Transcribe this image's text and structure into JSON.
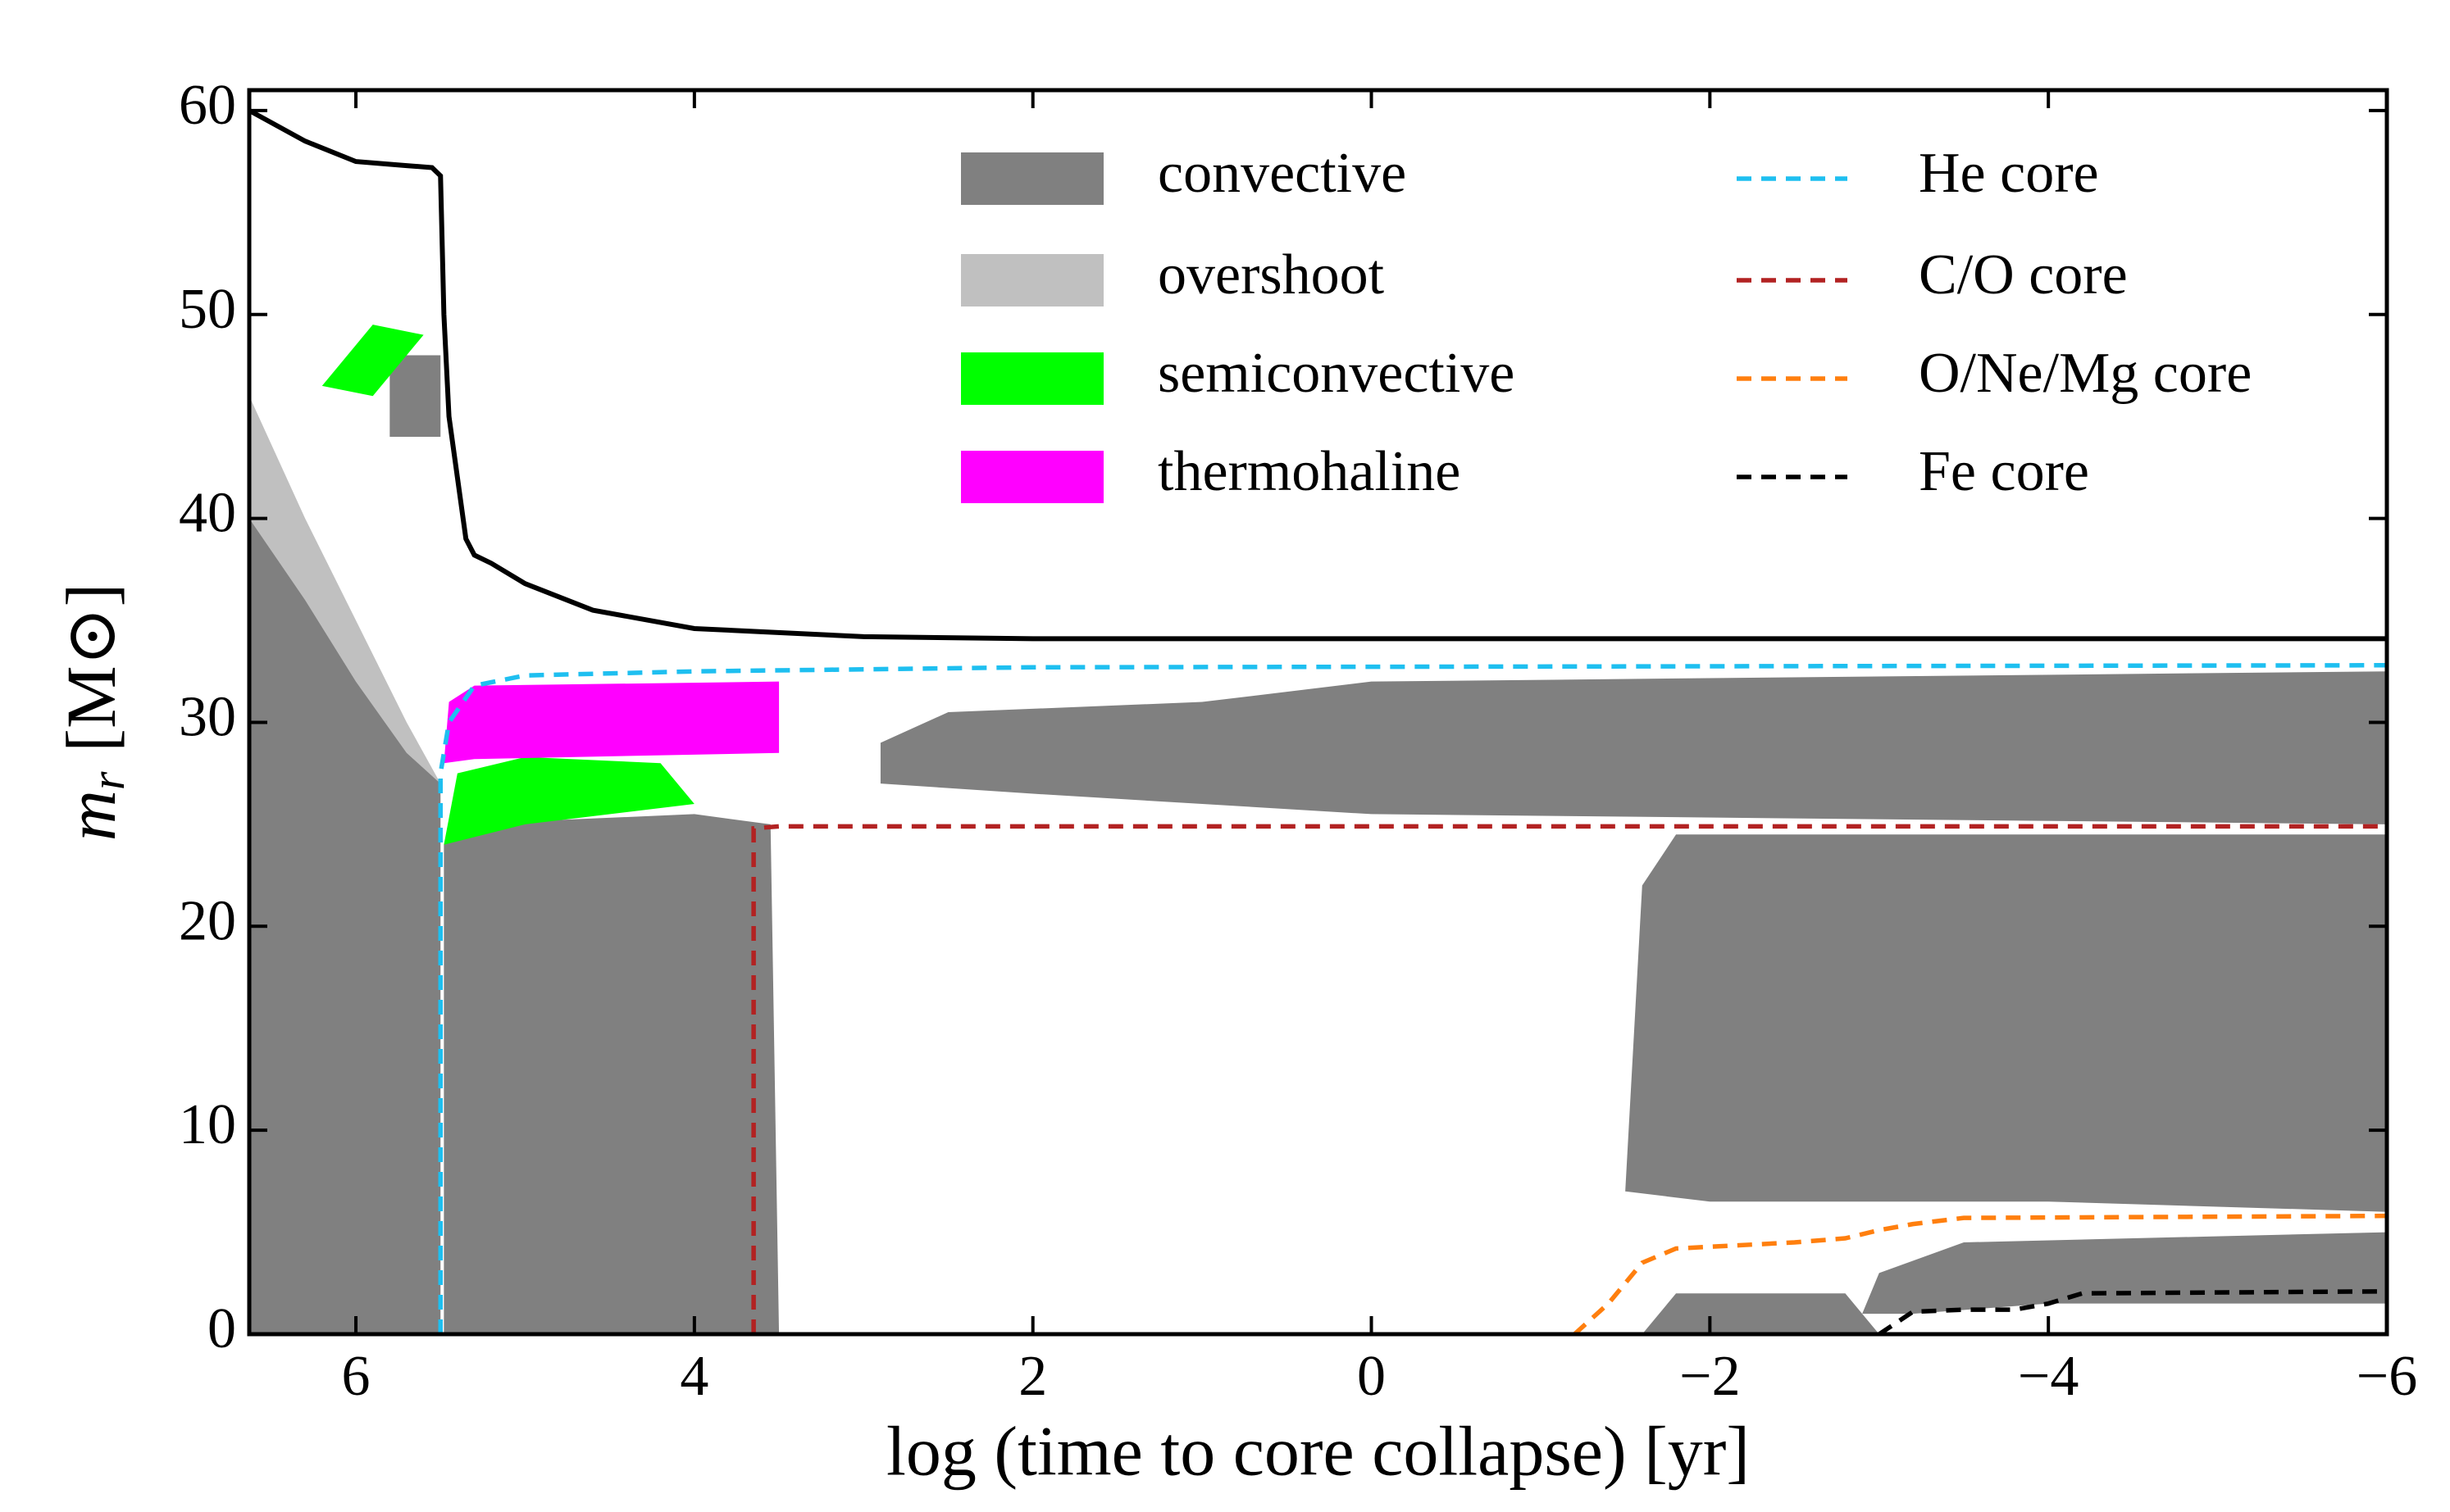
{
  "chart_data": {
    "type": "kippenhahn",
    "xlabel": "log (time to core collapse) [yr]",
    "ylabel": {
      "symbol": "m",
      "subscript": "r",
      "unit": "[M⊙]"
    },
    "xlim": [
      6.63,
      -6
    ],
    "ylim": [
      0,
      61
    ],
    "xticks": [
      6,
      4,
      2,
      0,
      {
        "value": -2,
        "label": "−2"
      },
      {
        "value": -4,
        "label": "−4"
      },
      {
        "value": -6,
        "label": "−6"
      }
    ],
    "yticks": [
      0,
      10,
      20,
      30,
      40,
      50,
      60
    ],
    "regions": [
      {
        "name": "convective",
        "color": "#808080",
        "polygons": [
          {
            "x": [
              6.63,
              6.63,
              6.3,
              6.0,
              5.7,
              5.5,
              5.5
            ],
            "y": [
              0,
              40,
              36,
              32,
              28.5,
              27,
              0
            ]
          },
          {
            "x": [
              5.48,
              5.48,
              5.4,
              4.0,
              3.55,
              3.5
            ],
            "y": [
              0,
              24,
              25,
              25.5,
              25,
              0
            ]
          },
          {
            "x": [
              2.9,
              2.5,
              1.0,
              0.0,
              -6.0,
              -6.0,
              0.0,
              2.0,
              2.9
            ],
            "y": [
              29,
              30.5,
              31,
              32,
              32.5,
              25,
              25.5,
              26.5,
              27
            ]
          },
          {
            "x": [
              -1.5,
              -1.6,
              -1.8,
              -6.0,
              -6.0,
              -4.0,
              -2.0
            ],
            "y": [
              7,
              22,
              24.5,
              24.5,
              6,
              6.5,
              6.5
            ]
          },
          {
            "x": [
              -1.6,
              -1.8,
              -2.8,
              -3.0
            ],
            "y": [
              0,
              2,
              2,
              0
            ]
          },
          {
            "x": [
              -2.9,
              -3.0,
              -3.5,
              -6.0,
              -6.0,
              -4.0,
              -3.2
            ],
            "y": [
              1,
              3,
              4.5,
              5,
              1.5,
              1.5,
              1
            ]
          },
          {
            "x": [
              5.8,
              5.5,
              5.5,
              5.8
            ],
            "y": [
              44,
              44,
              48,
              48
            ]
          }
        ]
      },
      {
        "name": "overshoot",
        "color": "#c0c0c0",
        "polygons": [
          {
            "x": [
              6.63,
              6.3,
              6.0,
              5.7,
              5.5,
              5.7,
              6.0,
              6.3,
              6.63
            ],
            "y": [
              46,
              40,
              35,
              30,
              27,
              28.5,
              32,
              36,
              40
            ]
          }
        ]
      },
      {
        "name": "semiconvective",
        "color": "#00ff00",
        "polygons": [
          {
            "x": [
              5.48,
              5.4,
              5.0,
              4.2,
              4.0,
              5.0
            ],
            "y": [
              24,
              27.5,
              28.3,
              28,
              26,
              25
            ]
          },
          {
            "x": [
              6.2,
              5.9,
              5.6,
              5.9
            ],
            "y": [
              46.5,
              49.5,
              49,
              46
            ]
          }
        ]
      },
      {
        "name": "thermohaline",
        "color": "#ff00ff",
        "polygons": [
          {
            "x": [
              5.48,
              5.45,
              5.3,
              3.5,
              3.5,
              5.3
            ],
            "y": [
              28,
              31,
              31.8,
              32,
              28.5,
              28.2
            ]
          }
        ]
      }
    ],
    "lines": [
      {
        "color": "#000000",
        "style": "solid",
        "x": [
          6.63,
          6.3,
          6.0,
          5.7,
          5.55,
          5.5,
          5.48,
          5.45,
          5.4,
          5.35,
          5.3,
          5.2,
          5.0,
          4.6,
          4.0,
          3.0,
          2.0,
          -6.0
        ],
        "y": [
          60,
          58.5,
          57.5,
          57.3,
          57.2,
          56.8,
          50,
          45,
          42,
          39,
          38.2,
          37.8,
          36.8,
          35.5,
          34.6,
          34.2,
          34.1,
          34.1
        ]
      },
      {
        "name": "He core",
        "color": "#1ebff0",
        "style": "dashed",
        "x": [
          5.5,
          5.5,
          5.45,
          5.3,
          5.0,
          4.0,
          3.0,
          2.0,
          -6.0
        ],
        "y": [
          0,
          27.5,
          30,
          31.8,
          32.3,
          32.5,
          32.6,
          32.7,
          32.8
        ]
      },
      {
        "name": "C/O core",
        "color": "#b22222",
        "style": "dashed",
        "x": [
          3.65,
          3.65,
          3.5,
          0.0,
          -6.0
        ],
        "y": [
          0,
          24.8,
          24.9,
          24.9,
          24.9
        ]
      },
      {
        "name": "O/Ne/Mg core",
        "color": "#ff7f0e",
        "style": "dashed",
        "x": [
          -1.2,
          -1.4,
          -1.6,
          -1.8,
          -2.5,
          -2.8,
          -3.0,
          -3.2,
          -3.5,
          -6.0
        ],
        "y": [
          0,
          1.5,
          3.5,
          4.2,
          4.5,
          4.7,
          5.1,
          5.4,
          5.7,
          5.8
        ]
      },
      {
        "name": "Fe core",
        "color": "#000000",
        "style": "dashed",
        "x": [
          -3.0,
          -3.2,
          -3.5,
          -3.8,
          -4.0,
          -4.2,
          -6.0
        ],
        "y": [
          0,
          1.1,
          1.2,
          1.2,
          1.5,
          2.0,
          2.1
        ]
      }
    ]
  }
}
